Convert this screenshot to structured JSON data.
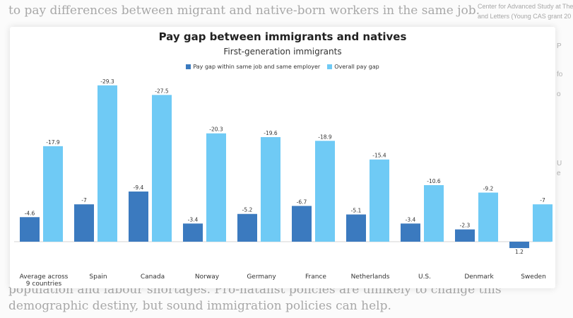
{
  "background": {
    "top_line": "to pay differences between migrant and native-born workers in the same job.",
    "bottom_line_1": "population and labour shortages. Pro-natalist policies are unlikely to change this",
    "bottom_line_2": "demographic destiny, but sound immigration policies can help.",
    "sidebar_line_1": "Center for Advanced Study at The",
    "sidebar_line_2": "and Letters (Young CAS grant 20"
  },
  "chart_data": {
    "type": "bar",
    "title": "Pay gap between immigrants and natives",
    "subtitle": "First-generation immigrants",
    "categories": [
      "Average across 9 countries",
      "Spain",
      "Canada",
      "Norway",
      "Germany",
      "France",
      "Netherlands",
      "U.S.",
      "Denmark",
      "Sweden"
    ],
    "series": [
      {
        "name": "Pay gap within same job and same employer",
        "color": "#3b7abf",
        "values": [
          -4.6,
          -7,
          -9.4,
          -3.4,
          -5.2,
          -6.7,
          -5.1,
          -3.4,
          -2.3,
          1.2
        ]
      },
      {
        "name": "Overall pay gap",
        "color": "#6fcaf5",
        "values": [
          -17.9,
          -29.3,
          -27.5,
          -20.3,
          -19.6,
          -18.9,
          -15.4,
          -10.6,
          -9.2,
          -7
        ]
      }
    ],
    "value_labels": [
      [
        "-4.6",
        "-7",
        "-9.4",
        "-3.4",
        "-5.2",
        "-6.7",
        "-5.1",
        "-3.4",
        "-2.3",
        "1.2"
      ],
      [
        "-17.9",
        "-29.3",
        "-27.5",
        "-20.3",
        "-19.6",
        "-18.9",
        "-15.4",
        "-10.6",
        "-9.2",
        "-7"
      ]
    ],
    "category_label_lines": [
      [
        "Average across",
        "9 countries"
      ],
      [
        "Spain"
      ],
      [
        "Canada"
      ],
      [
        "Norway"
      ],
      [
        "Germany"
      ],
      [
        "France"
      ],
      [
        "Netherlands"
      ],
      [
        "U.S."
      ],
      [
        "Denmark"
      ],
      [
        "Sweden"
      ]
    ],
    "legend_position": "top-center",
    "grid": false,
    "y_inverted": true,
    "ylim": [
      -30,
      2
    ]
  }
}
